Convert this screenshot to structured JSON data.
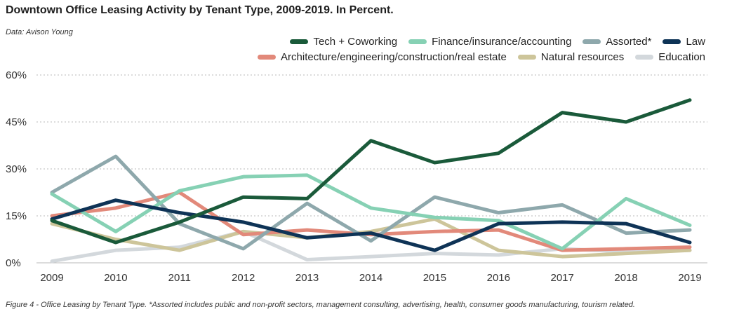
{
  "title": "Downtown Office Leasing Activity by Tenant Type, 2009-2019. In Percent.",
  "source": "Data: Avison Young",
  "caption": "Figure 4 - Office Leasing by Tenant Type. *Assorted includes public and non-profit sectors, management consulting, advertising, health, consumer goods manufacturing, tourism related.",
  "chart_data": {
    "type": "line",
    "x": [
      "2009",
      "2010",
      "2011",
      "2012",
      "2013",
      "2014",
      "2015",
      "2016",
      "2017",
      "2018",
      "2019"
    ],
    "ylim": [
      0,
      60
    ],
    "yticks": [
      0,
      15,
      30,
      45,
      60
    ],
    "ytick_labels": [
      "0%",
      "15%",
      "30%",
      "45%",
      "60%"
    ],
    "grid": "horizontal dotted",
    "legend_placement": "top-right",
    "series": [
      {
        "name": "Education",
        "color": "#d3d8dc",
        "values": [
          0.5,
          4,
          5,
          10,
          1,
          2,
          3,
          2.5,
          4.5,
          3.5,
          4
        ]
      },
      {
        "name": "Natural resources",
        "color": "#cdc59a",
        "values": [
          12.5,
          7.5,
          4,
          10,
          8,
          10,
          14,
          4,
          2,
          3,
          4
        ]
      },
      {
        "name": "Architecture/engineering/construction/real estate",
        "color": "#e2897a",
        "values": [
          15,
          17.5,
          22.5,
          9,
          10.5,
          9,
          10,
          10.5,
          4,
          4.5,
          5
        ]
      },
      {
        "name": "Assorted*",
        "color": "#8ea8ac",
        "values": [
          22.5,
          34,
          12.5,
          4.5,
          19,
          7,
          21,
          16,
          18.5,
          9.5,
          10.5
        ]
      },
      {
        "name": "Finance/insurance/accounting",
        "color": "#86d1b4",
        "values": [
          22,
          10,
          23,
          27.5,
          28,
          17.5,
          14.5,
          13.5,
          4.5,
          20.5,
          12
        ]
      },
      {
        "name": "Law",
        "color": "#0e3356",
        "values": [
          14,
          20,
          16,
          13,
          8,
          9.5,
          4,
          12.5,
          13,
          12.5,
          6.5
        ]
      },
      {
        "name": "Tech + Coworking",
        "color": "#1a5a3a",
        "values": [
          13.5,
          6.5,
          13,
          21,
          20.5,
          39,
          32,
          35,
          48,
          45,
          52
        ]
      }
    ],
    "legend_rows": [
      [
        "Tech + Coworking",
        "Finance/insurance/accounting",
        "Assorted*",
        "Law"
      ],
      [
        "Architecture/engineering/construction/real estate",
        "Natural resources",
        "Education"
      ]
    ]
  }
}
